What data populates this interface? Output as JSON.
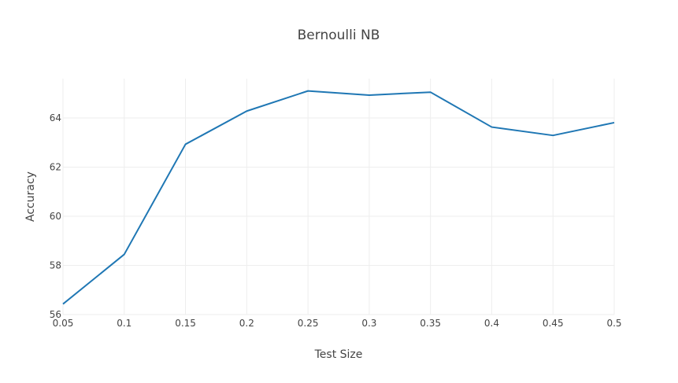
{
  "chart_data": {
    "type": "line",
    "title": "Bernoulli NB",
    "xlabel": "Test Size",
    "ylabel": "Accuracy",
    "x": [
      0.05,
      0.1,
      0.15,
      0.2,
      0.25,
      0.3,
      0.35,
      0.4,
      0.45,
      0.5
    ],
    "x_tick_labels": [
      "0.05",
      "0.1",
      "0.15",
      "0.2",
      "0.25",
      "0.3",
      "0.35",
      "0.4",
      "0.45",
      "0.5"
    ],
    "y_ticks": [
      56,
      58,
      60,
      62,
      64
    ],
    "y_tick_labels": [
      "56",
      "58",
      "60",
      "62",
      "64"
    ],
    "xlim": [
      0.05,
      0.5
    ],
    "ylim": [
      56,
      65.6
    ],
    "grid": true,
    "series": [
      {
        "values": [
          56.43,
          58.45,
          62.93,
          64.28,
          65.1,
          64.93,
          65.05,
          63.63,
          63.29,
          63.81
        ],
        "color": "#1f77b4"
      }
    ]
  }
}
